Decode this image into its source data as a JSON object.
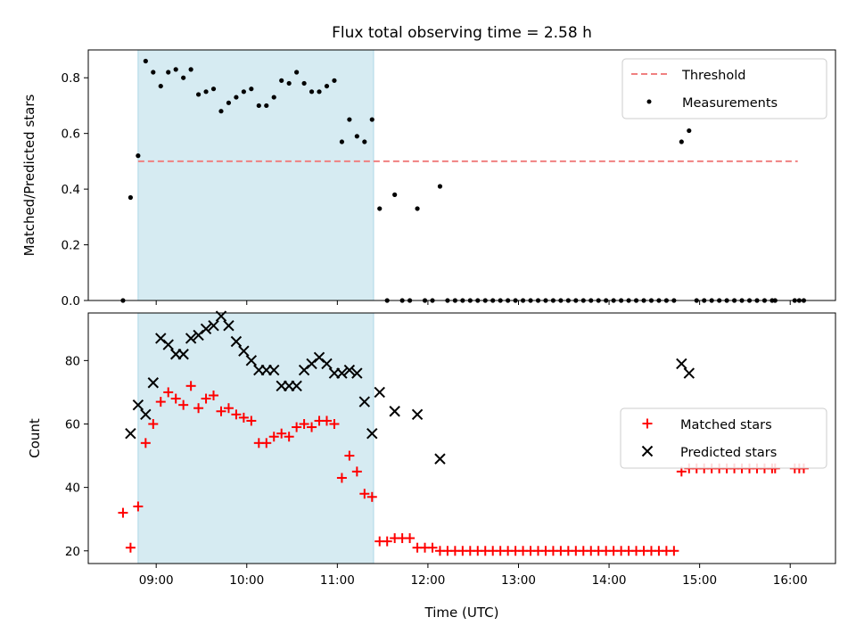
{
  "chart_data": [
    {
      "type": "scatter",
      "title": "Flux total observing time = 2.58 h",
      "xlabel": "",
      "ylabel": "Matched/Predicted stars",
      "ylim": [
        0,
        0.9
      ],
      "yticks": [
        "0.0",
        "0.2",
        "0.4",
        "0.6",
        "0.8"
      ],
      "xlim": [
        "08:15",
        "16:30"
      ],
      "shaded_interval": {
        "start": "08:48",
        "end": "11:24",
        "color": "#add8e6"
      },
      "threshold": {
        "name": "Threshold",
        "value": 0.5,
        "start": "08:48",
        "end": "16:05",
        "color": "#f08080"
      },
      "legend": {
        "placement": "top-right",
        "entries": [
          "Threshold",
          "Measurements"
        ]
      },
      "series": [
        {
          "name": "Measurements",
          "marker": "dot",
          "color": "#000000",
          "points": [
            [
              "08:38",
              0.0
            ],
            [
              "08:43",
              0.37
            ],
            [
              "08:48",
              0.52
            ],
            [
              "08:53",
              0.86
            ],
            [
              "08:58",
              0.82
            ],
            [
              "09:03",
              0.77
            ],
            [
              "09:08",
              0.82
            ],
            [
              "09:13",
              0.83
            ],
            [
              "09:18",
              0.8
            ],
            [
              "09:23",
              0.83
            ],
            [
              "09:28",
              0.74
            ],
            [
              "09:33",
              0.75
            ],
            [
              "09:38",
              0.76
            ],
            [
              "09:43",
              0.68
            ],
            [
              "09:48",
              0.71
            ],
            [
              "09:53",
              0.73
            ],
            [
              "09:58",
              0.75
            ],
            [
              "10:03",
              0.76
            ],
            [
              "10:08",
              0.7
            ],
            [
              "10:13",
              0.7
            ],
            [
              "10:18",
              0.73
            ],
            [
              "10:23",
              0.79
            ],
            [
              "10:28",
              0.78
            ],
            [
              "10:33",
              0.82
            ],
            [
              "10:38",
              0.78
            ],
            [
              "10:43",
              0.75
            ],
            [
              "10:48",
              0.75
            ],
            [
              "10:53",
              0.77
            ],
            [
              "10:58",
              0.79
            ],
            [
              "11:03",
              0.57
            ],
            [
              "11:08",
              0.65
            ],
            [
              "11:13",
              0.59
            ],
            [
              "11:18",
              0.57
            ],
            [
              "11:23",
              0.65
            ],
            [
              "11:28",
              0.33
            ],
            [
              "11:33",
              0.0
            ],
            [
              "11:38",
              0.38
            ],
            [
              "11:43",
              0.0
            ],
            [
              "11:48",
              0.0
            ],
            [
              "11:53",
              0.33
            ],
            [
              "11:58",
              0.0
            ],
            [
              "12:03",
              0.0
            ],
            [
              "12:08",
              0.41
            ],
            [
              "12:13",
              0.0
            ],
            [
              "12:18",
              0.0
            ],
            [
              "12:23",
              0.0
            ],
            [
              "12:28",
              0.0
            ],
            [
              "12:33",
              0.0
            ],
            [
              "12:38",
              0.0
            ],
            [
              "12:43",
              0.0
            ],
            [
              "12:48",
              0.0
            ],
            [
              "12:53",
              0.0
            ],
            [
              "12:58",
              0.0
            ],
            [
              "13:03",
              0.0
            ],
            [
              "13:08",
              0.0
            ],
            [
              "13:13",
              0.0
            ],
            [
              "13:18",
              0.0
            ],
            [
              "13:23",
              0.0
            ],
            [
              "13:28",
              0.0
            ],
            [
              "13:33",
              0.0
            ],
            [
              "13:38",
              0.0
            ],
            [
              "13:43",
              0.0
            ],
            [
              "13:48",
              0.0
            ],
            [
              "13:53",
              0.0
            ],
            [
              "13:58",
              0.0
            ],
            [
              "14:03",
              0.0
            ],
            [
              "14:08",
              0.0
            ],
            [
              "14:13",
              0.0
            ],
            [
              "14:18",
              0.0
            ],
            [
              "14:23",
              0.0
            ],
            [
              "14:28",
              0.0
            ],
            [
              "14:33",
              0.0
            ],
            [
              "14:38",
              0.0
            ],
            [
              "14:43",
              0.0
            ],
            [
              "14:48",
              0.57
            ],
            [
              "14:53",
              0.61
            ],
            [
              "14:58",
              0.0
            ],
            [
              "15:03",
              0.0
            ],
            [
              "15:08",
              0.0
            ],
            [
              "15:13",
              0.0
            ],
            [
              "15:18",
              0.0
            ],
            [
              "15:23",
              0.0
            ],
            [
              "15:28",
              0.0
            ],
            [
              "15:33",
              0.0
            ],
            [
              "15:38",
              0.0
            ],
            [
              "15:43",
              0.0
            ],
            [
              "15:48",
              0.0
            ],
            [
              "15:50",
              0.0
            ],
            [
              "16:03",
              0.0
            ],
            [
              "16:06",
              0.0
            ],
            [
              "16:09",
              0.0
            ]
          ]
        }
      ]
    },
    {
      "type": "scatter",
      "title": "",
      "xlabel": "Time (UTC)",
      "ylabel": "Count",
      "ylim": [
        16,
        95
      ],
      "yticks": [
        "20",
        "40",
        "60",
        "80"
      ],
      "xlim": [
        "08:15",
        "16:30"
      ],
      "xticks": [
        "09:00",
        "10:00",
        "11:00",
        "12:00",
        "13:00",
        "14:00",
        "15:00",
        "16:00"
      ],
      "shaded_interval": {
        "start": "08:48",
        "end": "11:24",
        "color": "#add8e6"
      },
      "legend": {
        "placement": "center-right",
        "entries": [
          "Matched stars",
          "Predicted stars"
        ]
      },
      "series": [
        {
          "name": "Matched stars",
          "marker": "plus",
          "color": "#ff0000",
          "points": [
            [
              "08:38",
              32
            ],
            [
              "08:43",
              21
            ],
            [
              "08:48",
              34
            ],
            [
              "08:53",
              54
            ],
            [
              "08:58",
              60
            ],
            [
              "09:03",
              67
            ],
            [
              "09:08",
              70
            ],
            [
              "09:13",
              68
            ],
            [
              "09:18",
              66
            ],
            [
              "09:23",
              72
            ],
            [
              "09:28",
              65
            ],
            [
              "09:33",
              68
            ],
            [
              "09:38",
              69
            ],
            [
              "09:43",
              64
            ],
            [
              "09:48",
              65
            ],
            [
              "09:53",
              63
            ],
            [
              "09:58",
              62
            ],
            [
              "10:03",
              61
            ],
            [
              "10:08",
              54
            ],
            [
              "10:13",
              54
            ],
            [
              "10:18",
              56
            ],
            [
              "10:23",
              57
            ],
            [
              "10:28",
              56
            ],
            [
              "10:33",
              59
            ],
            [
              "10:38",
              60
            ],
            [
              "10:43",
              59
            ],
            [
              "10:48",
              61
            ],
            [
              "10:53",
              61
            ],
            [
              "10:58",
              60
            ],
            [
              "11:03",
              43
            ],
            [
              "11:08",
              50
            ],
            [
              "11:13",
              45
            ],
            [
              "11:18",
              38
            ],
            [
              "11:23",
              37
            ],
            [
              "11:28",
              23
            ],
            [
              "11:33",
              23
            ],
            [
              "11:38",
              24
            ],
            [
              "11:43",
              24
            ],
            [
              "11:48",
              24
            ],
            [
              "11:53",
              21
            ],
            [
              "11:58",
              21
            ],
            [
              "12:03",
              21
            ],
            [
              "12:08",
              20
            ],
            [
              "12:13",
              20
            ],
            [
              "12:18",
              20
            ],
            [
              "12:23",
              20
            ],
            [
              "12:28",
              20
            ],
            [
              "12:33",
              20
            ],
            [
              "12:38",
              20
            ],
            [
              "12:43",
              20
            ],
            [
              "12:48",
              20
            ],
            [
              "12:53",
              20
            ],
            [
              "12:58",
              20
            ],
            [
              "13:03",
              20
            ],
            [
              "13:08",
              20
            ],
            [
              "13:13",
              20
            ],
            [
              "13:18",
              20
            ],
            [
              "13:23",
              20
            ],
            [
              "13:28",
              20
            ],
            [
              "13:33",
              20
            ],
            [
              "13:38",
              20
            ],
            [
              "13:43",
              20
            ],
            [
              "13:48",
              20
            ],
            [
              "13:53",
              20
            ],
            [
              "13:58",
              20
            ],
            [
              "14:03",
              20
            ],
            [
              "14:08",
              20
            ],
            [
              "14:13",
              20
            ],
            [
              "14:18",
              20
            ],
            [
              "14:23",
              20
            ],
            [
              "14:28",
              20
            ],
            [
              "14:33",
              20
            ],
            [
              "14:38",
              20
            ],
            [
              "14:43",
              20
            ],
            [
              "14:48",
              45
            ],
            [
              "14:53",
              46
            ],
            [
              "14:58",
              46
            ],
            [
              "15:03",
              46
            ],
            [
              "15:08",
              46
            ],
            [
              "15:13",
              46
            ],
            [
              "15:18",
              46
            ],
            [
              "15:23",
              46
            ],
            [
              "15:28",
              46
            ],
            [
              "15:33",
              46
            ],
            [
              "15:38",
              46
            ],
            [
              "15:43",
              46
            ],
            [
              "15:48",
              46
            ],
            [
              "15:50",
              46
            ],
            [
              "16:03",
              46
            ],
            [
              "16:06",
              46
            ],
            [
              "16:09",
              46
            ]
          ]
        },
        {
          "name": "Predicted stars",
          "marker": "cross",
          "color": "#000000",
          "points": [
            [
              "08:43",
              57
            ],
            [
              "08:48",
              66
            ],
            [
              "08:53",
              63
            ],
            [
              "08:58",
              73
            ],
            [
              "09:03",
              87
            ],
            [
              "09:08",
              85
            ],
            [
              "09:13",
              82
            ],
            [
              "09:18",
              82
            ],
            [
              "09:23",
              87
            ],
            [
              "09:28",
              88
            ],
            [
              "09:33",
              90
            ],
            [
              "09:38",
              91
            ],
            [
              "09:43",
              94
            ],
            [
              "09:48",
              91
            ],
            [
              "09:53",
              86
            ],
            [
              "09:58",
              83
            ],
            [
              "10:03",
              80
            ],
            [
              "10:08",
              77
            ],
            [
              "10:13",
              77
            ],
            [
              "10:18",
              77
            ],
            [
              "10:23",
              72
            ],
            [
              "10:28",
              72
            ],
            [
              "10:33",
              72
            ],
            [
              "10:38",
              77
            ],
            [
              "10:43",
              79
            ],
            [
              "10:48",
              81
            ],
            [
              "10:53",
              79
            ],
            [
              "10:58",
              76
            ],
            [
              "11:03",
              76
            ],
            [
              "11:08",
              77
            ],
            [
              "11:13",
              76
            ],
            [
              "11:18",
              67
            ],
            [
              "11:23",
              57
            ],
            [
              "11:28",
              70
            ],
            [
              "11:38",
              64
            ],
            [
              "11:53",
              63
            ],
            [
              "12:08",
              49
            ],
            [
              "14:48",
              79
            ],
            [
              "14:53",
              76
            ]
          ]
        }
      ]
    }
  ]
}
